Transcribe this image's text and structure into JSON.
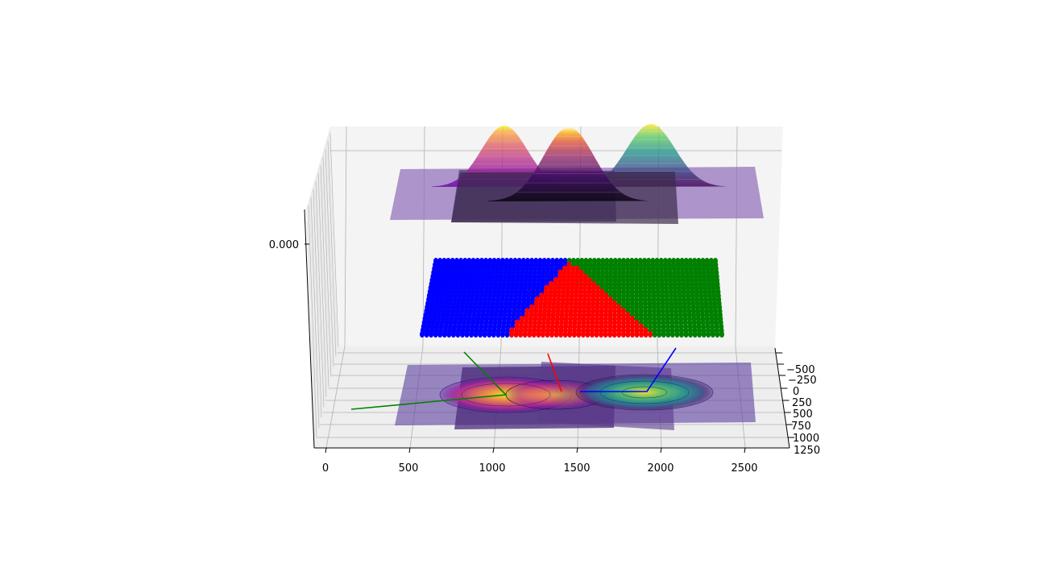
{
  "chart_data": {
    "type": "surface3d",
    "title": "",
    "xlabel": "",
    "ylabel": "",
    "zlabel": "",
    "x_ticks": [
      "0",
      "500",
      "1000",
      "1500",
      "2000",
      "2500"
    ],
    "y_ticks": [
      "−500",
      "−250",
      "0",
      "250",
      "500",
      "750",
      "1000",
      "1250"
    ],
    "z_ticks": [
      "0.000"
    ],
    "grid": true,
    "surfaces": [
      {
        "colormap": "plasma",
        "center_x": 1050,
        "center_y": 0
      },
      {
        "colormap": "inferno",
        "center_x": 1250,
        "center_y": 0
      },
      {
        "colormap": "viridis",
        "center_x": 1950,
        "center_y": 0
      }
    ],
    "classification_regions": [
      {
        "color": "#0000ff",
        "region": "left"
      },
      {
        "color": "#ff0000",
        "region": "center"
      },
      {
        "color": "#008000",
        "region": "right"
      }
    ],
    "direction_lines": [
      {
        "color": "#008000"
      },
      {
        "color": "#ff0000"
      },
      {
        "color": "#0000ff"
      }
    ],
    "colors": {
      "blue": "#0000ff",
      "red": "#ff0000",
      "green": "#008000",
      "pane": "#f2f2f2",
      "grid": "#b0b0b0"
    }
  }
}
